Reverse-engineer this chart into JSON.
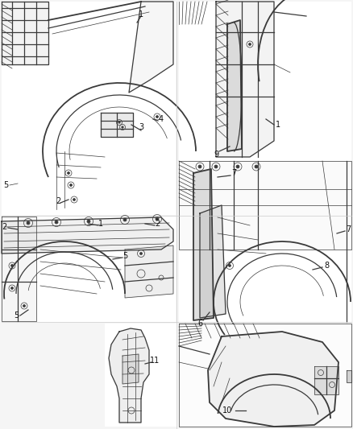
{
  "background_color": "#f5f5f5",
  "line_color": "#3a3a3a",
  "label_color": "#111111",
  "fig_width": 4.38,
  "fig_height": 5.33,
  "dpi": 100,
  "panel_bg": "#f0f0f0",
  "panel_border": "#aaaaaa"
}
